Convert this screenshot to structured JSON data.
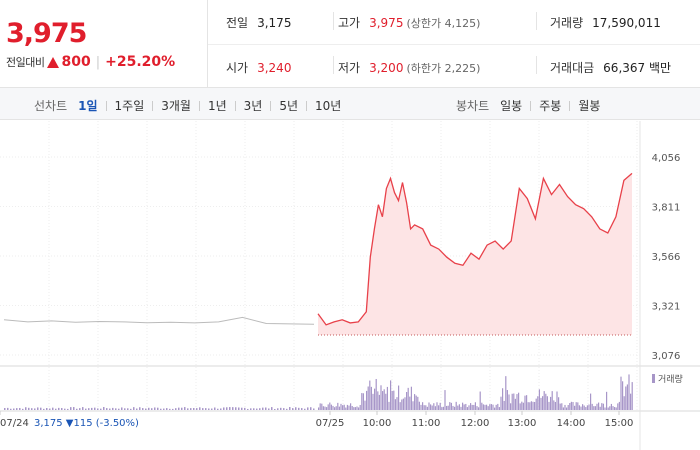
{
  "quote": {
    "price": "3,975",
    "change_label": "전일대비",
    "change_amount": "800",
    "change_percent": "+25.20%"
  },
  "stats": {
    "prev_close": {
      "label": "전일",
      "value": "3,175"
    },
    "high": {
      "label": "고가",
      "value": "3,975",
      "sub": "(상한가 4,125)"
    },
    "volume": {
      "label": "거래량",
      "value": "17,590,011"
    },
    "open": {
      "label": "시가",
      "value": "3,240"
    },
    "low": {
      "label": "저가",
      "value": "3,200",
      "sub": "(하한가 2,225)"
    },
    "trade_value": {
      "label": "거래대금",
      "value": "66,367",
      "unit": "백만"
    }
  },
  "line_tabs": {
    "category": "선차트",
    "items": [
      "1일",
      "1주일",
      "3개월",
      "1년",
      "3년",
      "5년",
      "10년"
    ],
    "active_index": 0
  },
  "candle_tabs": {
    "category": "봉차트",
    "items": [
      "일봉",
      "주봉",
      "월봉"
    ]
  },
  "chart_data": {
    "type": "line",
    "y_ticks": [
      "4,056",
      "3,811",
      "3,566",
      "3,321",
      "3,076"
    ],
    "ylim": [
      3076,
      4056
    ],
    "x_tick_labels": [
      "07/24",
      "07/25",
      "10:00",
      "11:00",
      "12:00",
      "13:00",
      "14:00",
      "15:00"
    ],
    "prev_day_info": {
      "date": "07/24",
      "close": "3,175",
      "change": "115",
      "change_pct": "(-3.50%)"
    },
    "volume_legend": "거래량",
    "colors": {
      "today_line": "#e8414a",
      "today_fill": "#fde4e5",
      "prev_line": "#bbbbbb",
      "volume": "#a796c8"
    },
    "series": [
      {
        "name": "07/24",
        "x": [
          "09:00",
          "09:30",
          "10:00",
          "10:30",
          "11:00",
          "11:30",
          "12:00",
          "12:30",
          "13:00",
          "13:30",
          "14:00",
          "14:30",
          "15:00",
          "15:30"
        ],
        "values": [
          3250,
          3240,
          3245,
          3238,
          3242,
          3240,
          3236,
          3238,
          3235,
          3240,
          3262,
          3232,
          3230,
          3228
        ]
      },
      {
        "name": "07/25",
        "x": [
          "09:00",
          "09:10",
          "09:20",
          "09:30",
          "09:40",
          "09:50",
          "10:00",
          "10:05",
          "10:10",
          "10:15",
          "10:20",
          "10:25",
          "10:30",
          "10:35",
          "10:40",
          "10:45",
          "10:50",
          "10:55",
          "11:00",
          "11:10",
          "11:20",
          "11:30",
          "11:40",
          "11:50",
          "12:00",
          "12:10",
          "12:20",
          "12:30",
          "12:40",
          "12:50",
          "13:00",
          "13:10",
          "13:20",
          "13:30",
          "13:40",
          "13:50",
          "14:00",
          "14:10",
          "14:20",
          "14:30",
          "14:40",
          "14:50",
          "15:00",
          "15:10",
          "15:20",
          "15:30"
        ],
        "values": [
          3280,
          3225,
          3240,
          3250,
          3235,
          3240,
          3290,
          3560,
          3700,
          3820,
          3760,
          3900,
          3950,
          3880,
          3840,
          3930,
          3830,
          3700,
          3720,
          3700,
          3620,
          3600,
          3560,
          3530,
          3520,
          3580,
          3550,
          3620,
          3640,
          3600,
          3640,
          3900,
          3850,
          3750,
          3950,
          3870,
          3920,
          3860,
          3820,
          3800,
          3760,
          3700,
          3680,
          3760,
          3940,
          3975
        ]
      }
    ]
  }
}
